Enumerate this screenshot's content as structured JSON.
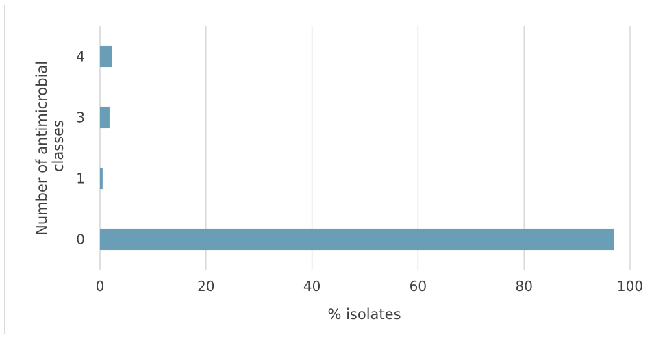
{
  "chart_data": {
    "type": "bar",
    "orientation": "horizontal",
    "categories": [
      "0",
      "1",
      "3",
      "4"
    ],
    "values": [
      97.0,
      0.5,
      1.8,
      2.3
    ],
    "title": "",
    "xlabel": "% isolates",
    "ylabel_lines": [
      "Number of antimicrobial",
      "classes"
    ],
    "xlim": [
      0,
      100
    ],
    "xticks": [
      "0",
      "20",
      "40",
      "60",
      "80",
      "100"
    ],
    "grid": "vertical",
    "legend": "none",
    "bar_color": "#6a9db6",
    "grid_color": "#d9d9d9"
  }
}
